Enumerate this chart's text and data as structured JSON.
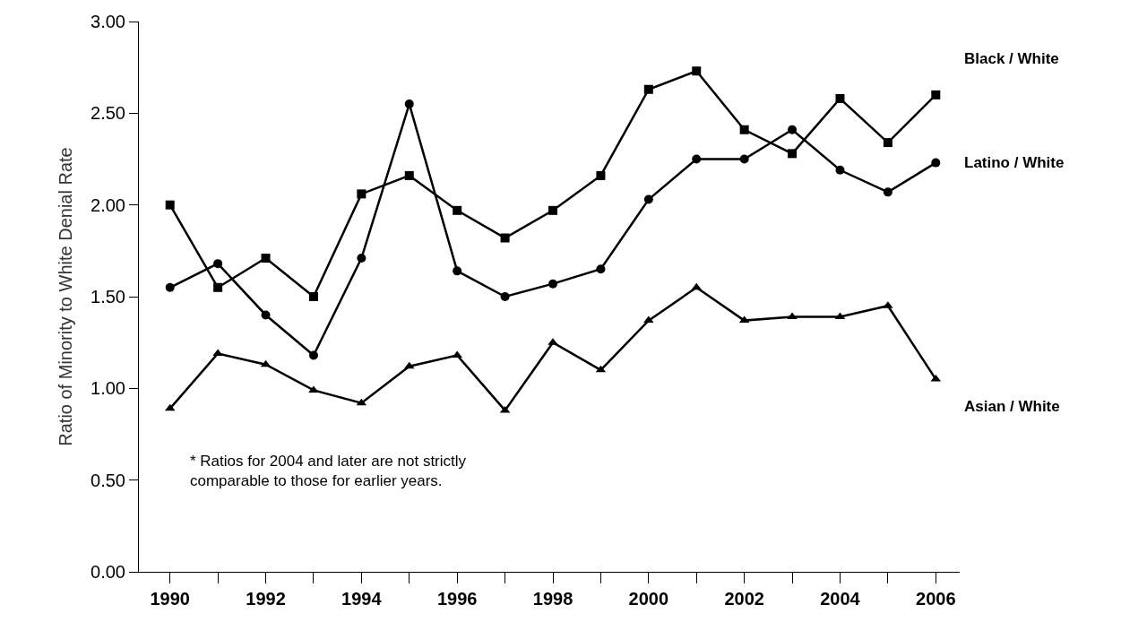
{
  "chart_data": {
    "type": "line",
    "ylabel": "Ratio of Minority to White Denial Rate",
    "x": [
      1990,
      1991,
      1992,
      1993,
      1994,
      1995,
      1996,
      1997,
      1998,
      1999,
      2000,
      2001,
      2002,
      2003,
      2004,
      2005,
      2006
    ],
    "series": [
      {
        "name": "Black / White",
        "color": "#000000",
        "marker": "square",
        "values": [
          2.0,
          1.55,
          1.71,
          1.5,
          2.06,
          2.16,
          1.97,
          1.82,
          1.97,
          2.16,
          2.63,
          2.73,
          2.41,
          2.28,
          2.58,
          2.34,
          2.6
        ]
      },
      {
        "name": "Latino / White",
        "color": "#000000",
        "marker": "circle",
        "values": [
          1.55,
          1.68,
          1.4,
          1.18,
          1.71,
          2.55,
          1.64,
          1.5,
          1.57,
          1.65,
          2.03,
          2.25,
          2.25,
          2.41,
          2.19,
          2.07,
          2.23
        ]
      },
      {
        "name": "Asian / White",
        "color": "#000000",
        "marker": "triangle",
        "values": [
          0.89,
          1.19,
          1.13,
          0.99,
          0.92,
          1.12,
          1.18,
          0.88,
          1.25,
          1.1,
          1.37,
          1.55,
          1.37,
          1.39,
          1.39,
          1.45,
          1.05
        ]
      }
    ],
    "xlim": [
      1989.35,
      2006.5
    ],
    "xticks": [
      1990,
      {
        "value": 1991,
        "label": null
      },
      1992,
      {
        "value": 1993,
        "label": null
      },
      1994,
      {
        "value": 1995,
        "label": null
      },
      1996,
      {
        "value": 1997,
        "label": null
      },
      1998,
      {
        "value": 1999,
        "label": null
      },
      2000,
      {
        "value": 2001,
        "label": null
      },
      2002,
      {
        "value": 2003,
        "label": null
      },
      2004,
      {
        "value": 2005,
        "label": null
      },
      2006
    ],
    "ylim": [
      0,
      3.0
    ],
    "yticks": [
      {
        "value": 0,
        "label": "0.00"
      },
      {
        "value": 0.5,
        "label": "0.50"
      },
      {
        "value": 1,
        "label": "1.00"
      },
      {
        "value": 1.5,
        "label": "1.50"
      },
      {
        "value": 2,
        "label": "2.00"
      },
      {
        "value": 2.5,
        "label": "2.50"
      },
      {
        "value": 3,
        "label": "3.00"
      }
    ],
    "annotations": [
      "* Ratios for 2004 and later are not strictly\ncomparable to those for earlier years."
    ],
    "legend": false,
    "line_style": "solid"
  }
}
